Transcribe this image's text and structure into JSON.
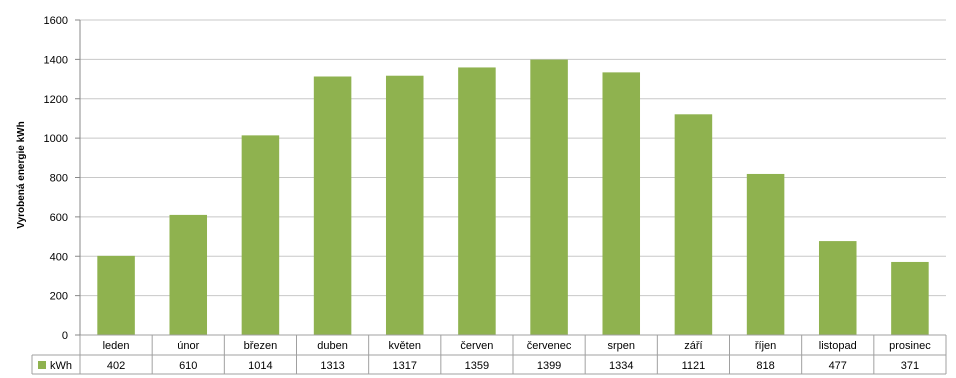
{
  "chart_data": {
    "type": "bar",
    "title": "",
    "xlabel": "",
    "ylabel": "Vyrobená energie kWh",
    "ylim": [
      0,
      1600
    ],
    "yticks": [
      0,
      200,
      400,
      600,
      800,
      1000,
      1200,
      1400,
      1600
    ],
    "grid": true,
    "legend": "data-table",
    "categories": [
      "leden",
      "únor",
      "březen",
      "duben",
      "květen",
      "červen",
      "červenec",
      "srpen",
      "září",
      "říjen",
      "listopad",
      "prosinec"
    ],
    "series": [
      {
        "name": "kWh",
        "color": "#8fb24f",
        "values": [
          402,
          610,
          1014,
          1313,
          1317,
          1359,
          1399,
          1334,
          1121,
          818,
          477,
          371
        ]
      }
    ]
  }
}
